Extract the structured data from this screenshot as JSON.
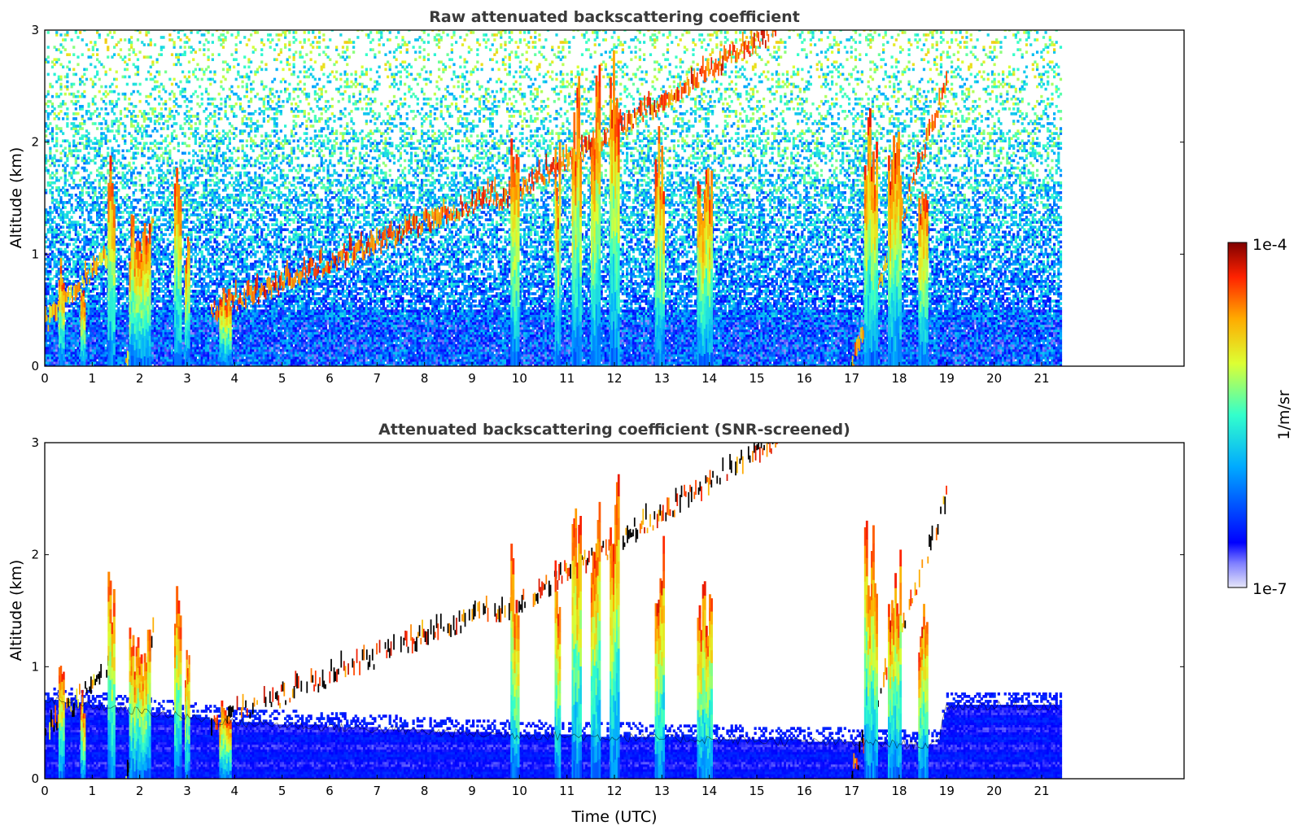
{
  "chart_data": [
    {
      "type": "heatmap",
      "title": "Raw attenuated backscattering coefficient",
      "xlabel": "",
      "ylabel": "Altitude (km)",
      "xlim": [
        0,
        24
      ],
      "ylim": [
        0,
        3
      ],
      "x_ticks": [
        "0",
        "1",
        "2",
        "3",
        "4",
        "5",
        "6",
        "7",
        "8",
        "9",
        "10",
        "11",
        "12",
        "13",
        "14",
        "15",
        "16",
        "17",
        "18",
        "19",
        "20",
        "21"
      ],
      "y_ticks": [
        "0",
        "1",
        "2",
        "3"
      ],
      "data_end_time": 21.4,
      "noise_fill": "dense",
      "layers": [
        {
          "t_start": 0.0,
          "t_end": 1.4,
          "alt_base": 0.35,
          "alt_top": 1.0,
          "intensity": 0.85
        },
        {
          "t_start": 1.7,
          "t_end": 2.3,
          "alt_base": 0.0,
          "alt_top": 1.3,
          "intensity": 0.8
        },
        {
          "t_start": 3.5,
          "t_end": 9.5,
          "alt_base": 0.45,
          "alt_top": 1.5,
          "intensity": 0.95
        },
        {
          "t_start": 9.5,
          "t_end": 15.5,
          "alt_base": 1.4,
          "alt_top": 3.0,
          "intensity": 0.95
        },
        {
          "t_start": 17.0,
          "t_end": 19.0,
          "alt_base": 0.0,
          "alt_top": 2.5,
          "intensity": 0.9
        }
      ],
      "plumes": [
        {
          "time": 0.35,
          "top": 1.0,
          "width": 0.12
        },
        {
          "time": 0.8,
          "top": 0.8,
          "width": 0.1
        },
        {
          "time": 1.4,
          "top": 1.8,
          "width": 0.15
        },
        {
          "time": 2.0,
          "top": 1.3,
          "width": 0.45
        },
        {
          "time": 2.8,
          "top": 1.7,
          "width": 0.15
        },
        {
          "time": 3.0,
          "top": 1.2,
          "width": 0.1
        },
        {
          "time": 3.8,
          "top": 0.7,
          "width": 0.25
        },
        {
          "time": 9.9,
          "top": 2.0,
          "width": 0.18
        },
        {
          "time": 10.8,
          "top": 2.0,
          "width": 0.12
        },
        {
          "time": 11.2,
          "top": 2.5,
          "width": 0.2
        },
        {
          "time": 11.6,
          "top": 2.6,
          "width": 0.2
        },
        {
          "time": 12.0,
          "top": 2.7,
          "width": 0.2
        },
        {
          "time": 12.95,
          "top": 2.2,
          "width": 0.2
        },
        {
          "time": 13.9,
          "top": 1.8,
          "width": 0.32
        },
        {
          "time": 17.4,
          "top": 2.3,
          "width": 0.28
        },
        {
          "time": 17.9,
          "top": 2.0,
          "width": 0.28
        },
        {
          "time": 18.5,
          "top": 1.6,
          "width": 0.2
        }
      ],
      "colorbar": {
        "min_label": "1e-7",
        "max_label": "1e-4",
        "label": "1/m/sr",
        "scale": "log"
      }
    },
    {
      "type": "heatmap",
      "title": "Attenuated backscattering coefficient (SNR-screened)",
      "xlabel": "Time (UTC)",
      "ylabel": "Altitude (km)",
      "xlim": [
        0,
        24
      ],
      "ylim": [
        0,
        3
      ],
      "x_ticks": [
        "0",
        "1",
        "2",
        "3",
        "4",
        "5",
        "6",
        "7",
        "8",
        "9",
        "10",
        "11",
        "12",
        "13",
        "14",
        "15",
        "16",
        "17",
        "18",
        "19",
        "20",
        "21"
      ],
      "y_ticks": [
        "0",
        "1",
        "2",
        "3"
      ],
      "data_end_time": 21.4,
      "noise_fill": "screened",
      "boundary_layer_top": [
        {
          "t": 0.0,
          "alt": 0.7
        },
        {
          "t": 4.0,
          "alt": 0.5
        },
        {
          "t": 9.0,
          "alt": 0.4
        },
        {
          "t": 14.0,
          "alt": 0.35
        },
        {
          "t": 18.8,
          "alt": 0.3
        },
        {
          "t": 19.0,
          "alt": 0.65
        },
        {
          "t": 21.4,
          "alt": 0.65
        }
      ]
    }
  ],
  "colors": {
    "colormap": [
      "#e8e8f8",
      "#0000ff",
      "#00ccff",
      "#ffff00",
      "#ff0000",
      "#7f0000"
    ],
    "boundary_black": "#000000"
  }
}
